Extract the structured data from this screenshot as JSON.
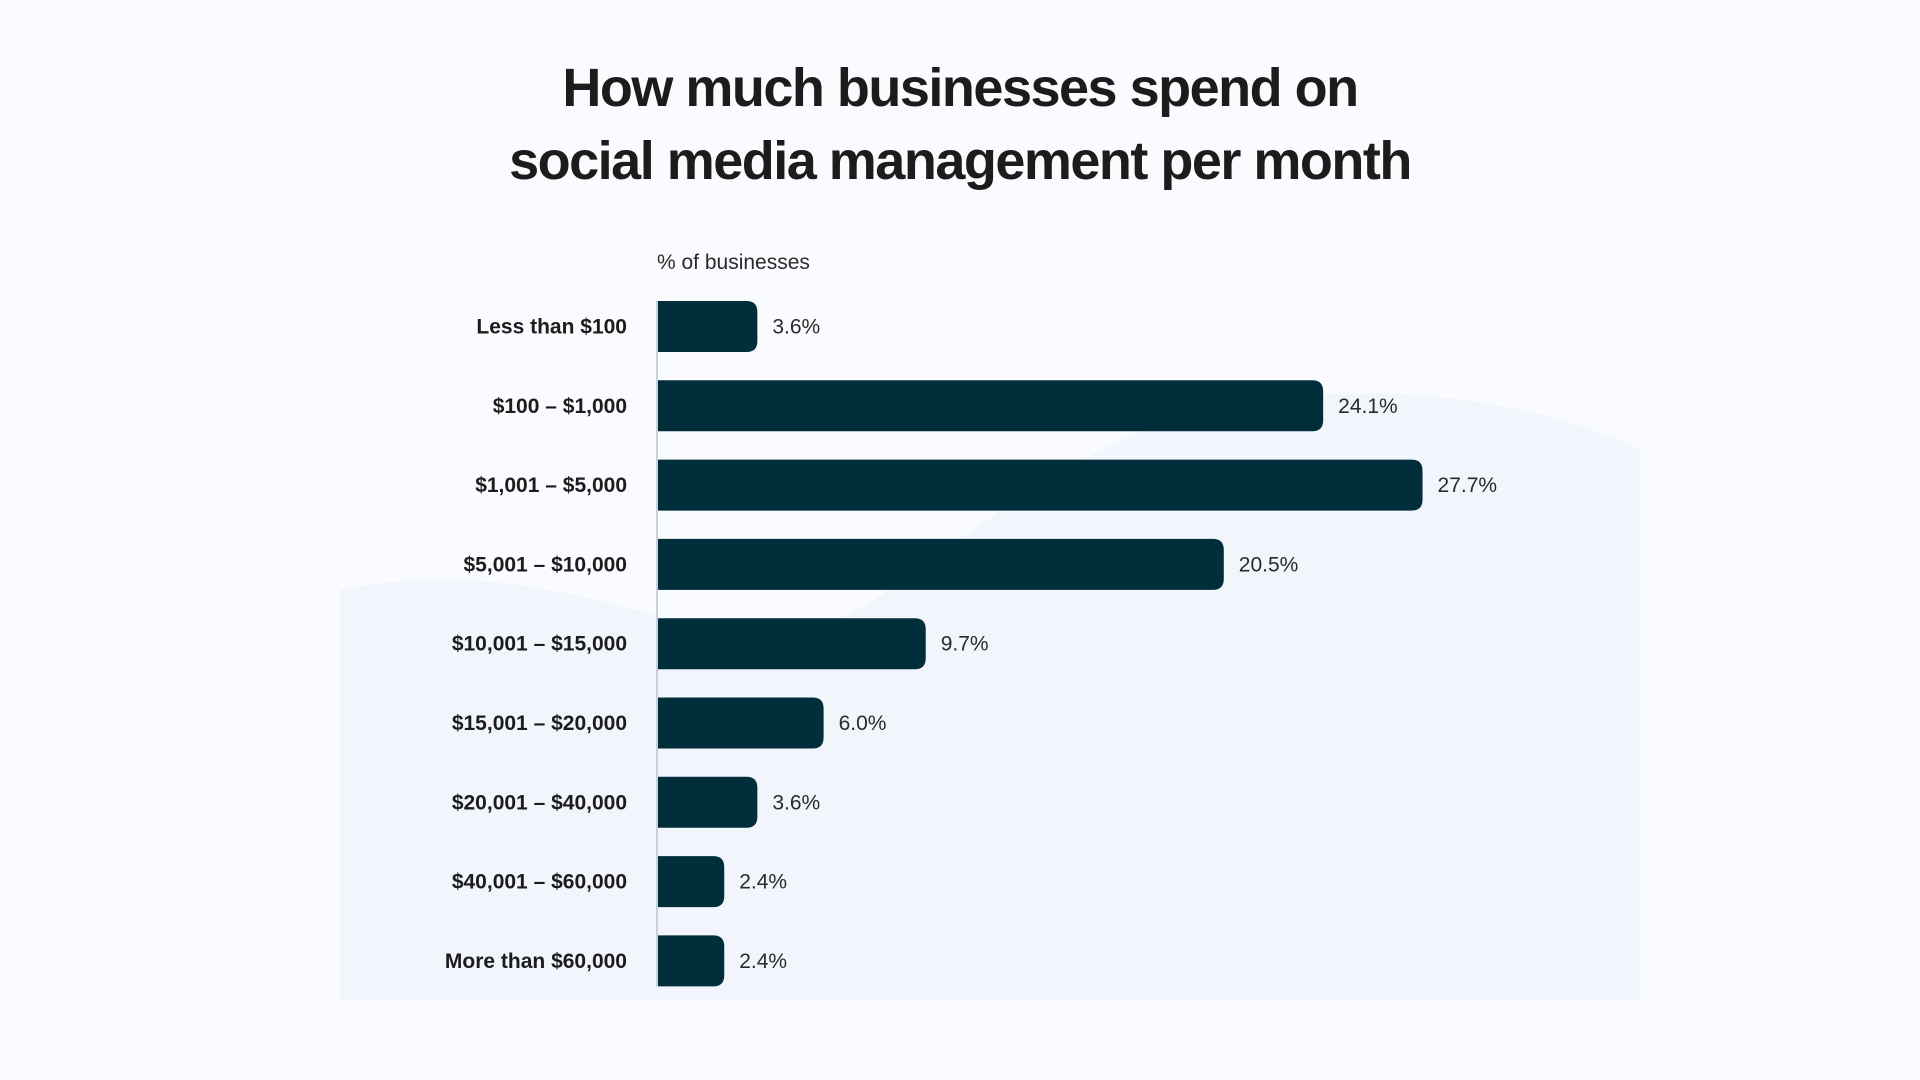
{
  "chart_data": {
    "type": "bar",
    "orientation": "horizontal",
    "title_lines": [
      "How much businesses spend on",
      "social media management per month"
    ],
    "xlabel": "% of businesses",
    "categories": [
      "Less than $100",
      "$100 – $1,000",
      "$1,001 – $5,000",
      "$5,001 – $10,000",
      "$10,001 – $15,000",
      "$15,001 – $20,000",
      "$20,001 – $40,000",
      "$40,001 – $60,000",
      "More than $60,000"
    ],
    "values": [
      3.6,
      24.1,
      27.7,
      20.5,
      9.7,
      6.0,
      3.6,
      2.4,
      2.4
    ],
    "value_labels": [
      "3.6%",
      "24.1%",
      "27.7%",
      "20.5%",
      "9.7%",
      "6.0%",
      "3.6%",
      "2.4%",
      "2.4%"
    ],
    "unit": "%",
    "grid": false,
    "legend": "none",
    "colors": {
      "bar": "#012e3b",
      "background": "#f9fbfe",
      "axis": "#c9d0d6",
      "text": "#1c1c1c"
    }
  }
}
